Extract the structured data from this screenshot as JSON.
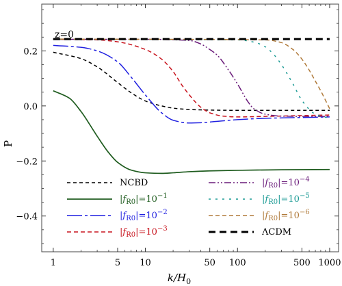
{
  "chart_data": {
    "type": "line",
    "title": "",
    "annotation": "z=0",
    "xlabel": "k/H",
    "xlabel_subscript": "0",
    "ylabel": "P",
    "xscale": "log",
    "xlim": [
      0.75,
      1250
    ],
    "ylim": [
      -0.53,
      0.37
    ],
    "xticks": [
      1,
      5,
      10,
      50,
      100,
      500,
      1000
    ],
    "xtick_labels": [
      "1",
      "5",
      "10",
      "50",
      "100",
      "500",
      "1000"
    ],
    "yticks": [
      -0.4,
      -0.2,
      0.0,
      0.2
    ],
    "ytick_labels": [
      "−0.4",
      "−0.2",
      "0.0",
      "0.2"
    ],
    "grid": false,
    "legend_placement": "bottom",
    "series": [
      {
        "name": "NCBD",
        "color": "#000000",
        "dash": "5,4",
        "width": 1.5,
        "x": [
          1,
          2,
          3,
          5,
          7,
          10,
          15,
          20,
          30,
          50,
          100,
          300,
          1000
        ],
        "y": [
          0.195,
          0.172,
          0.142,
          0.085,
          0.048,
          0.018,
          0.0,
          -0.008,
          -0.013,
          -0.015,
          -0.016,
          -0.016,
          -0.016
        ]
      },
      {
        "name": "|f",
        "name_sub": "R0",
        "name_rest": "|=10",
        "name_exp": "−1",
        "color": "#1f5c1f",
        "dash": "",
        "width": 1.7,
        "x": [
          1,
          1.5,
          2,
          3,
          4,
          5,
          7,
          10,
          15,
          20,
          30,
          50,
          100,
          300,
          1000
        ],
        "y": [
          0.055,
          0.028,
          -0.02,
          -0.11,
          -0.17,
          -0.205,
          -0.233,
          -0.243,
          -0.245,
          -0.243,
          -0.239,
          -0.236,
          -0.234,
          -0.232,
          -0.231
        ]
      },
      {
        "name": "|f",
        "name_sub": "R0",
        "name_rest": "|=10",
        "name_exp": "−2",
        "color": "#1f1fe0",
        "dash": "22,4,4,4",
        "width": 1.5,
        "x": [
          1,
          2,
          3,
          5,
          7,
          10,
          15,
          20,
          30,
          40,
          60,
          100,
          200,
          500,
          1000
        ],
        "y": [
          0.22,
          0.213,
          0.2,
          0.16,
          0.105,
          0.04,
          -0.025,
          -0.052,
          -0.062,
          -0.061,
          -0.056,
          -0.05,
          -0.045,
          -0.042,
          -0.04
        ]
      },
      {
        "name": "|f",
        "name_sub": "R0",
        "name_rest": "|=10",
        "name_exp": "−3",
        "color": "#c8141e",
        "dash": "6,4",
        "width": 1.5,
        "x": [
          1,
          3,
          5,
          10,
          15,
          20,
          25,
          30,
          40,
          50,
          70,
          100,
          200,
          500,
          1000
        ],
        "y": [
          0.242,
          0.24,
          0.233,
          0.205,
          0.17,
          0.125,
          0.075,
          0.04,
          -0.005,
          -0.025,
          -0.037,
          -0.04,
          -0.038,
          -0.035,
          -0.033
        ]
      },
      {
        "name": "|f",
        "name_sub": "R0",
        "name_rest": "|=10",
        "name_exp": "−4",
        "color": "#6a1b7a",
        "dash": "10,3,2,3,2,3",
        "width": 1.5,
        "x": [
          1,
          10,
          30,
          40,
          50,
          60,
          80,
          100,
          130,
          150,
          200,
          300,
          500,
          1000
        ],
        "y": [
          0.242,
          0.242,
          0.238,
          0.225,
          0.205,
          0.185,
          0.13,
          0.08,
          0.015,
          -0.01,
          -0.03,
          -0.037,
          -0.038,
          -0.038
        ]
      },
      {
        "name": "|f",
        "name_sub": "R0",
        "name_rest": "|=10",
        "name_exp": "−5",
        "color": "#1a9a94",
        "dash": "3,7",
        "width": 1.5,
        "x": [
          1,
          100,
          150,
          200,
          250,
          300,
          400,
          500,
          700,
          1000
        ],
        "y": [
          0.242,
          0.24,
          0.232,
          0.215,
          0.185,
          0.15,
          0.08,
          0.02,
          -0.03,
          -0.045
        ]
      },
      {
        "name": "|f",
        "name_sub": "R0",
        "name_rest": "|=10",
        "name_exp": "−6",
        "color": "#b07a3a",
        "dash": "6,4",
        "width": 1.5,
        "x": [
          1,
          200,
          300,
          400,
          500,
          600,
          700,
          800,
          1000
        ],
        "y": [
          0.243,
          0.24,
          0.23,
          0.205,
          0.17,
          0.13,
          0.09,
          0.055,
          -0.01
        ]
      },
      {
        "name": "ΛCDM",
        "color": "#000000",
        "dash": "10,6",
        "width": 3,
        "x": [
          1,
          1000
        ],
        "y": [
          0.243,
          0.243
        ]
      }
    ]
  }
}
